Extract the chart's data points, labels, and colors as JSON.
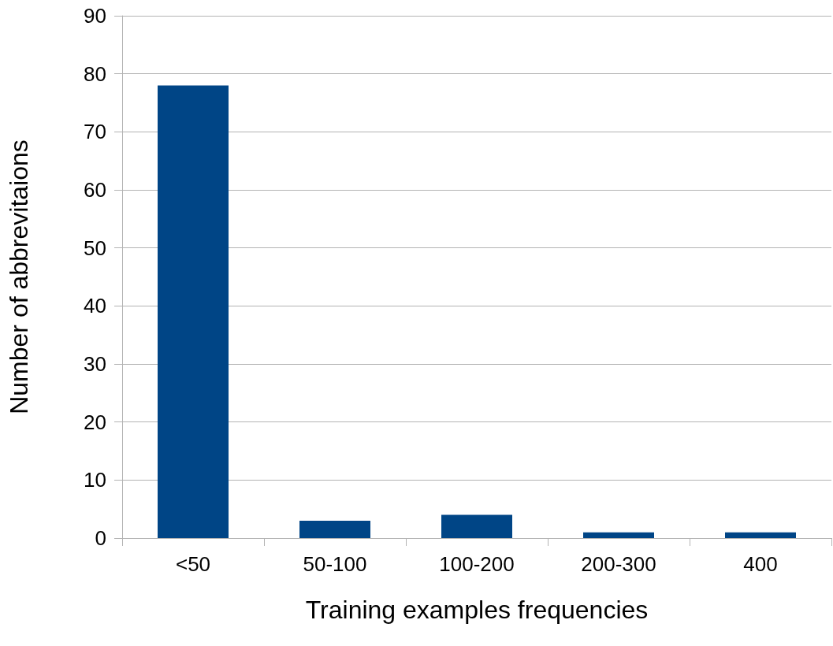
{
  "chart_data": {
    "type": "bar",
    "xlabel": "Training examples frequencies",
    "ylabel": "Number of abbrevitaions",
    "categories": [
      "<50",
      "50-100",
      "100-200",
      "200-300",
      "400"
    ],
    "values": [
      78,
      3,
      4,
      1,
      1
    ],
    "color": "#004586",
    "ylim": [
      0,
      90
    ],
    "yticks": [
      0,
      10,
      20,
      30,
      40,
      50,
      60,
      70,
      80,
      90
    ],
    "grid": "y"
  }
}
